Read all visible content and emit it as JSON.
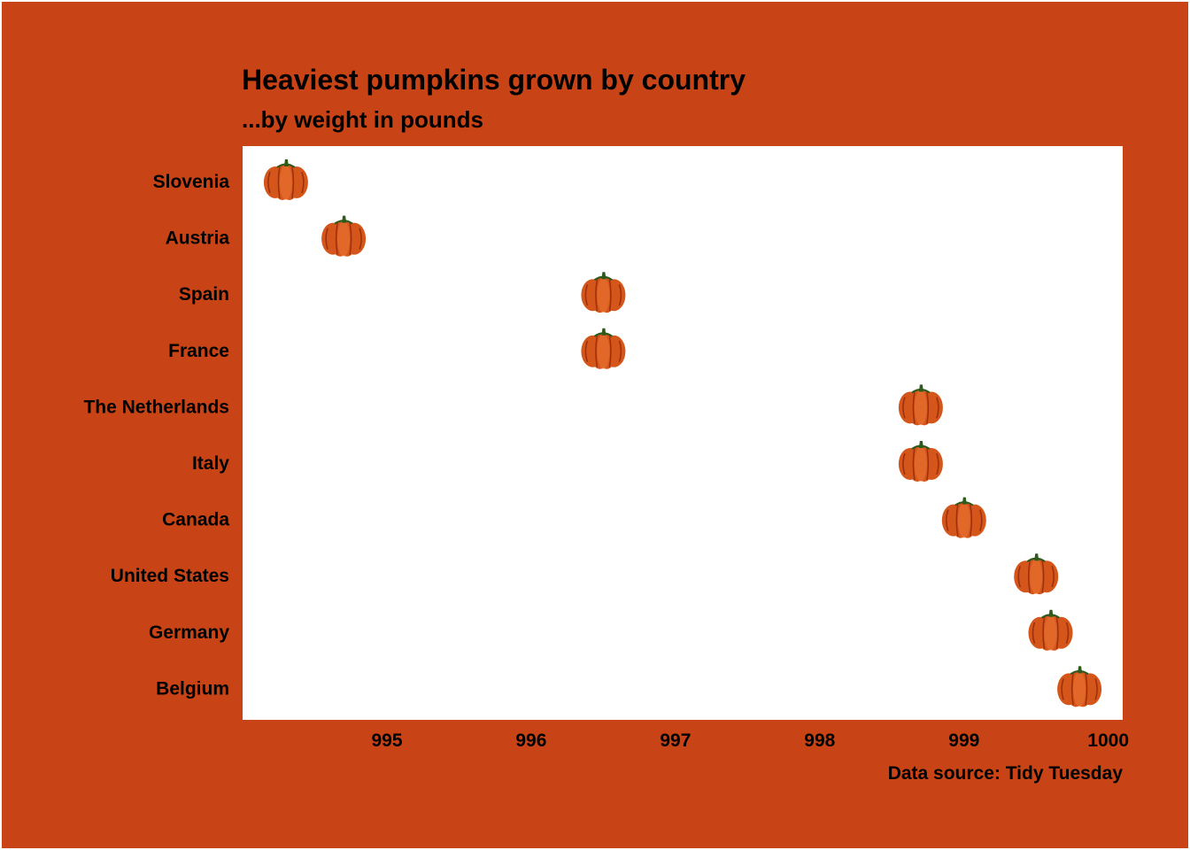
{
  "colors": {
    "background": "#C84416",
    "panel": "#FFFFFF",
    "pumpkin_body": "#D4561A",
    "pumpkin_rib": "#9E2F0C",
    "pumpkin_highlight": "#F07A3A",
    "stem": "#2E5A1C"
  },
  "chart_data": {
    "type": "scatter",
    "marker": "pumpkin-icon",
    "title": "Heaviest pumpkins grown by country",
    "subtitle": "...by weight in pounds",
    "caption": "Data source: Tidy Tuesday",
    "xlabel": "",
    "ylabel": "",
    "xlim": [
      994.0,
      1000.1
    ],
    "xticks": [
      995,
      996,
      997,
      998,
      999,
      1000
    ],
    "grid": false,
    "legend": "none",
    "categories": [
      "Slovenia",
      "Austria",
      "Spain",
      "France",
      "The Netherlands",
      "Italy",
      "Canada",
      "United States",
      "Germany",
      "Belgium"
    ],
    "values": [
      994.3,
      994.7,
      996.5,
      996.5,
      998.7,
      998.7,
      999.0,
      999.5,
      999.6,
      999.8
    ]
  }
}
